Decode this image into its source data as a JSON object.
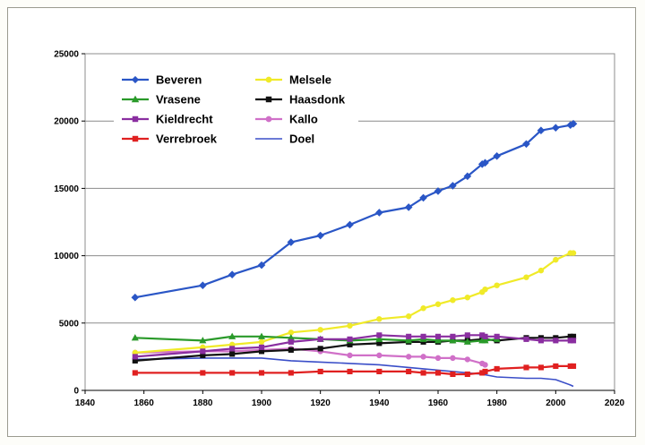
{
  "chart_data": {
    "type": "line",
    "title": "",
    "xlabel": "",
    "ylabel": "",
    "xlim": [
      1840,
      2020
    ],
    "ylim": [
      0,
      25000
    ],
    "x_ticks": [
      "1840",
      "1860",
      "1880",
      "1900",
      "1920",
      "1940",
      "1960",
      "1980",
      "2000",
      "2020"
    ],
    "y_ticks": [
      "0",
      "5000",
      "10000",
      "15000",
      "20000",
      "25000"
    ],
    "grid": "horizontal",
    "legend_position": "top-left",
    "series": [
      {
        "name": "Beveren",
        "color": "#2a56c6",
        "marker": "diamond",
        "points": [
          [
            1857,
            6900
          ],
          [
            1880,
            7800
          ],
          [
            1890,
            8600
          ],
          [
            1900,
            9300
          ],
          [
            1910,
            11000
          ],
          [
            1920,
            11500
          ],
          [
            1930,
            12300
          ],
          [
            1940,
            13200
          ],
          [
            1950,
            13600
          ],
          [
            1955,
            14300
          ],
          [
            1960,
            14800
          ],
          [
            1965,
            15200
          ],
          [
            1970,
            15900
          ],
          [
            1975,
            16800
          ],
          [
            1976,
            16900
          ],
          [
            1980,
            17400
          ],
          [
            1990,
            18300
          ],
          [
            1995,
            19300
          ],
          [
            2000,
            19500
          ],
          [
            2005,
            19700
          ],
          [
            2006,
            19800
          ]
        ]
      },
      {
        "name": "Vrasene",
        "color": "#2a9a2a",
        "marker": "triangle",
        "points": [
          [
            1857,
            3900
          ],
          [
            1880,
            3700
          ],
          [
            1890,
            4000
          ],
          [
            1900,
            4000
          ],
          [
            1910,
            3900
          ],
          [
            1920,
            3800
          ],
          [
            1930,
            3700
          ],
          [
            1940,
            3800
          ],
          [
            1950,
            3700
          ],
          [
            1955,
            3800
          ],
          [
            1960,
            3700
          ],
          [
            1965,
            3700
          ],
          [
            1970,
            3600
          ],
          [
            1975,
            3700
          ],
          [
            1976,
            3700
          ],
          [
            1980,
            3800
          ]
        ]
      },
      {
        "name": "Kieldrecht",
        "color": "#8a2ea0",
        "marker": "square",
        "points": [
          [
            1857,
            2500
          ],
          [
            1880,
            2900
          ],
          [
            1890,
            3100
          ],
          [
            1900,
            3200
          ],
          [
            1910,
            3600
          ],
          [
            1920,
            3800
          ],
          [
            1930,
            3800
          ],
          [
            1940,
            4100
          ],
          [
            1950,
            4000
          ],
          [
            1955,
            4000
          ],
          [
            1960,
            4000
          ],
          [
            1965,
            4000
          ],
          [
            1970,
            4100
          ],
          [
            1975,
            4100
          ],
          [
            1976,
            4000
          ],
          [
            1980,
            4000
          ],
          [
            1990,
            3800
          ],
          [
            1995,
            3700
          ],
          [
            2000,
            3700
          ],
          [
            2005,
            3700
          ],
          [
            2006,
            3700
          ]
        ]
      },
      {
        "name": "Verrebroek",
        "color": "#e02020",
        "marker": "square",
        "points": [
          [
            1857,
            1300
          ],
          [
            1880,
            1300
          ],
          [
            1890,
            1300
          ],
          [
            1900,
            1300
          ],
          [
            1910,
            1300
          ],
          [
            1920,
            1400
          ],
          [
            1930,
            1400
          ],
          [
            1940,
            1400
          ],
          [
            1950,
            1400
          ],
          [
            1955,
            1300
          ],
          [
            1960,
            1300
          ],
          [
            1965,
            1200
          ],
          [
            1970,
            1200
          ],
          [
            1975,
            1300
          ],
          [
            1976,
            1400
          ],
          [
            1980,
            1600
          ],
          [
            1990,
            1700
          ],
          [
            1995,
            1700
          ],
          [
            2000,
            1800
          ],
          [
            2005,
            1800
          ],
          [
            2006,
            1800
          ]
        ]
      },
      {
        "name": "Melsele",
        "color": "#f0ea28",
        "marker": "circle",
        "points": [
          [
            1857,
            2800
          ],
          [
            1880,
            3200
          ],
          [
            1890,
            3400
          ],
          [
            1900,
            3600
          ],
          [
            1910,
            4300
          ],
          [
            1920,
            4500
          ],
          [
            1930,
            4800
          ],
          [
            1940,
            5300
          ],
          [
            1950,
            5500
          ],
          [
            1955,
            6100
          ],
          [
            1960,
            6400
          ],
          [
            1965,
            6700
          ],
          [
            1970,
            6900
          ],
          [
            1975,
            7300
          ],
          [
            1976,
            7500
          ],
          [
            1980,
            7800
          ],
          [
            1990,
            8400
          ],
          [
            1995,
            8900
          ],
          [
            2000,
            9700
          ],
          [
            2005,
            10200
          ],
          [
            2006,
            10200
          ]
        ]
      },
      {
        "name": "Haasdonk",
        "color": "#111111",
        "marker": "square",
        "points": [
          [
            1857,
            2200
          ],
          [
            1880,
            2600
          ],
          [
            1890,
            2700
          ],
          [
            1900,
            2900
          ],
          [
            1910,
            3000
          ],
          [
            1920,
            3100
          ],
          [
            1930,
            3400
          ],
          [
            1940,
            3500
          ],
          [
            1950,
            3600
          ],
          [
            1955,
            3600
          ],
          [
            1960,
            3600
          ],
          [
            1965,
            3700
          ],
          [
            1970,
            3700
          ],
          [
            1975,
            3800
          ],
          [
            1976,
            3800
          ],
          [
            1980,
            3700
          ],
          [
            1990,
            3900
          ],
          [
            1995,
            3900
          ],
          [
            2000,
            3900
          ],
          [
            2005,
            4000
          ],
          [
            2006,
            4000
          ]
        ]
      },
      {
        "name": "Kallo",
        "color": "#d070c8",
        "marker": "circle",
        "points": [
          [
            1857,
            2800
          ],
          [
            1880,
            2900
          ],
          [
            1890,
            2900
          ],
          [
            1900,
            3000
          ],
          [
            1910,
            3100
          ],
          [
            1920,
            2900
          ],
          [
            1930,
            2600
          ],
          [
            1940,
            2600
          ],
          [
            1950,
            2500
          ],
          [
            1955,
            2500
          ],
          [
            1960,
            2400
          ],
          [
            1965,
            2400
          ],
          [
            1970,
            2300
          ],
          [
            1975,
            2000
          ],
          [
            1976,
            1900
          ]
        ]
      },
      {
        "name": "Doel",
        "color": "#3a4ec8",
        "marker": "none",
        "points": [
          [
            1857,
            2300
          ],
          [
            1880,
            2400
          ],
          [
            1890,
            2400
          ],
          [
            1900,
            2400
          ],
          [
            1910,
            2200
          ],
          [
            1920,
            2100
          ],
          [
            1930,
            2000
          ],
          [
            1940,
            1900
          ],
          [
            1950,
            1700
          ],
          [
            1955,
            1600
          ],
          [
            1960,
            1500
          ],
          [
            1965,
            1400
          ],
          [
            1970,
            1300
          ],
          [
            1975,
            1200
          ],
          [
            1980,
            1000
          ],
          [
            1990,
            900
          ],
          [
            1995,
            900
          ],
          [
            2000,
            800
          ],
          [
            2005,
            400
          ],
          [
            2006,
            300
          ]
        ]
      }
    ]
  }
}
